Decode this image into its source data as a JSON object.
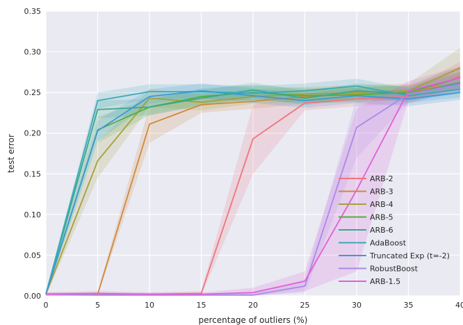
{
  "chart_data": {
    "type": "line",
    "xlabel": "percentage of outliers (%)",
    "ylabel": "test error",
    "xlim": [
      0,
      40
    ],
    "ylim": [
      0,
      0.35
    ],
    "x_ticks": [
      0,
      5,
      10,
      15,
      20,
      25,
      30,
      35,
      40
    ],
    "y_ticks": [
      0.0,
      0.05,
      0.1,
      0.15,
      0.2,
      0.25,
      0.3,
      0.35
    ],
    "x_tick_labels": [
      "0",
      "5",
      "10",
      "15",
      "20",
      "25",
      "30",
      "35",
      "40"
    ],
    "y_tick_labels": [
      "0.00",
      "0.05",
      "0.10",
      "0.15",
      "0.20",
      "0.25",
      "0.30",
      "0.35"
    ],
    "grid": true,
    "legend_position": "lower-right",
    "x": [
      0,
      5,
      10,
      15,
      20,
      25,
      30,
      35,
      40
    ],
    "series": [
      {
        "name": "ARB-2",
        "color": "#f0747d",
        "values": [
          0.002,
          0.002,
          0.002,
          0.003,
          0.193,
          0.237,
          0.242,
          0.245,
          0.27
        ],
        "lower": [
          0.0,
          0.0,
          0.0,
          0.0,
          0.15,
          0.228,
          0.233,
          0.236,
          0.255
        ],
        "upper": [
          0.004,
          0.004,
          0.004,
          0.006,
          0.235,
          0.246,
          0.251,
          0.254,
          0.288
        ]
      },
      {
        "name": "ARB-3",
        "color": "#d1883a",
        "values": [
          0.002,
          0.002,
          0.211,
          0.235,
          0.239,
          0.245,
          0.248,
          0.25,
          0.262
        ],
        "lower": [
          0.0,
          0.0,
          0.188,
          0.225,
          0.23,
          0.236,
          0.239,
          0.241,
          0.25
        ],
        "upper": [
          0.004,
          0.004,
          0.234,
          0.245,
          0.248,
          0.254,
          0.257,
          0.259,
          0.276
        ]
      },
      {
        "name": "ARB-4",
        "color": "#a4a03a",
        "values": [
          0.002,
          0.166,
          0.243,
          0.238,
          0.245,
          0.248,
          0.25,
          0.252,
          0.28
        ],
        "lower": [
          0.0,
          0.145,
          0.232,
          0.228,
          0.236,
          0.239,
          0.241,
          0.243,
          0.26
        ],
        "upper": [
          0.004,
          0.188,
          0.254,
          0.248,
          0.254,
          0.257,
          0.259,
          0.261,
          0.305
        ]
      },
      {
        "name": "ARB-5",
        "color": "#52b03c",
        "values": [
          0.002,
          0.204,
          0.232,
          0.245,
          0.25,
          0.246,
          0.247,
          0.25,
          0.268
        ],
        "lower": [
          0.0,
          0.188,
          0.222,
          0.235,
          0.241,
          0.237,
          0.238,
          0.241,
          0.255
        ],
        "upper": [
          0.004,
          0.22,
          0.242,
          0.255,
          0.259,
          0.255,
          0.256,
          0.259,
          0.282
        ]
      },
      {
        "name": "ARB-6",
        "color": "#39a88c",
        "values": [
          0.002,
          0.229,
          0.232,
          0.243,
          0.253,
          0.243,
          0.252,
          0.248,
          0.262
        ],
        "lower": [
          0.0,
          0.218,
          0.222,
          0.233,
          0.244,
          0.234,
          0.243,
          0.239,
          0.25
        ],
        "upper": [
          0.004,
          0.24,
          0.242,
          0.253,
          0.262,
          0.252,
          0.261,
          0.257,
          0.275
        ]
      },
      {
        "name": "AdaBoost",
        "color": "#3aaab8",
        "values": [
          0.002,
          0.24,
          0.251,
          0.251,
          0.249,
          0.252,
          0.258,
          0.246,
          0.254
        ],
        "lower": [
          0.0,
          0.23,
          0.242,
          0.242,
          0.24,
          0.243,
          0.249,
          0.237,
          0.244
        ],
        "upper": [
          0.004,
          0.25,
          0.26,
          0.26,
          0.258,
          0.261,
          0.267,
          0.255,
          0.265
        ]
      },
      {
        "name": "Truncated Exp (t=-2)",
        "color": "#3a9ad6",
        "values": [
          0.002,
          0.203,
          0.245,
          0.252,
          0.246,
          0.24,
          0.246,
          0.242,
          0.25
        ],
        "lower": [
          0.0,
          0.19,
          0.236,
          0.243,
          0.237,
          0.231,
          0.237,
          0.233,
          0.241
        ],
        "upper": [
          0.004,
          0.216,
          0.254,
          0.261,
          0.255,
          0.249,
          0.255,
          0.251,
          0.259
        ]
      },
      {
        "name": "RobustBoost",
        "color": "#a88ae8",
        "values": [
          0.002,
          0.001,
          0.001,
          0.001,
          0.001,
          0.012,
          0.207,
          0.248,
          0.26
        ],
        "lower": [
          0.0,
          0.0,
          0.0,
          0.0,
          0.0,
          0.004,
          0.17,
          0.238,
          0.249
        ],
        "upper": [
          0.004,
          0.003,
          0.003,
          0.003,
          0.003,
          0.02,
          0.244,
          0.258,
          0.272
        ]
      },
      {
        "name": "ARB-1.5",
        "color": "#e060d8",
        "values": [
          0.002,
          0.003,
          0.002,
          0.002,
          0.004,
          0.018,
          0.13,
          0.252,
          0.268
        ],
        "lower": [
          0.0,
          0.0,
          0.0,
          0.0,
          0.0,
          0.006,
          0.03,
          0.24,
          0.255
        ],
        "upper": [
          0.004,
          0.006,
          0.004,
          0.004,
          0.01,
          0.03,
          0.23,
          0.264,
          0.282
        ]
      }
    ]
  }
}
